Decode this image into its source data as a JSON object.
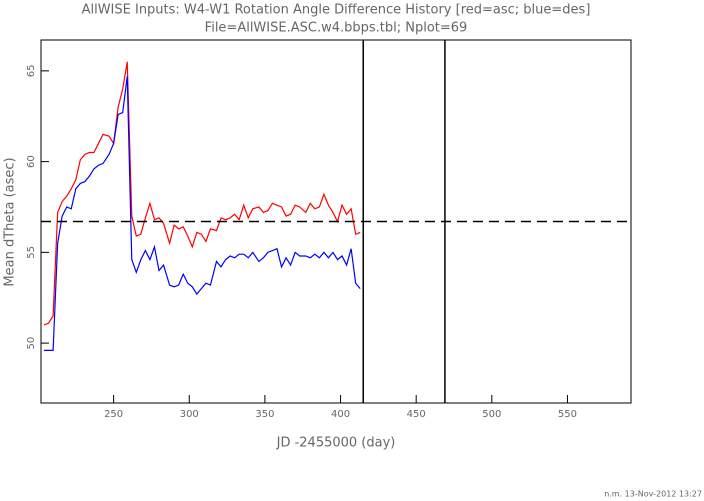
{
  "chart_data": {
    "type": "line",
    "title": "AllWISE Inputs: W4-W1 Rotation Angle Difference History [red=asc; blue=des]",
    "subtitle": "File=AllWISE.ASC.w4.bbps.tbl; Nplot=69",
    "x_label": "JD -2455000 (day)",
    "y_label": "Mean dTheta (asec)",
    "footer": "n.m. 13-Nov-2012 13:27",
    "x": [
      204,
      207,
      210,
      213,
      216,
      219,
      222,
      225,
      228,
      231,
      234,
      237,
      240,
      243,
      247,
      250,
      253,
      256,
      259,
      262,
      265,
      268,
      271,
      274,
      277,
      280,
      283,
      287,
      290,
      293,
      296,
      299,
      302,
      305,
      308,
      311,
      314,
      318,
      321,
      324,
      327,
      330,
      333,
      336,
      339,
      342,
      346,
      349,
      352,
      355,
      358,
      361,
      364,
      367,
      370,
      373,
      377,
      380,
      383,
      386,
      389,
      392,
      395,
      398,
      401,
      404,
      407,
      410,
      413
    ],
    "series": [
      {
        "name": "asc",
        "color": "#ff0000",
        "values": [
          51.0,
          51.1,
          51.5,
          57.2,
          57.8,
          58.1,
          58.5,
          59.0,
          60.1,
          60.4,
          60.5,
          60.5,
          61.0,
          61.5,
          61.4,
          61.0,
          63.0,
          64.0,
          65.5,
          57.0,
          55.9,
          56.0,
          56.9,
          57.7,
          56.8,
          56.9,
          56.6,
          55.5,
          56.5,
          56.3,
          56.4,
          55.9,
          55.3,
          56.1,
          56.0,
          55.6,
          56.3,
          56.2,
          56.9,
          56.8,
          56.9,
          57.1,
          56.8,
          57.6,
          56.9,
          57.4,
          57.5,
          57.2,
          57.3,
          57.7,
          57.6,
          57.5,
          57.0,
          57.1,
          57.6,
          57.5,
          57.2,
          57.7,
          57.4,
          57.5,
          58.2,
          57.6,
          57.2,
          56.7,
          57.6,
          57.1,
          57.4,
          56.0,
          56.1
        ]
      },
      {
        "name": "des",
        "color": "#0000ff",
        "values": [
          49.6,
          49.6,
          49.6,
          55.5,
          57.0,
          57.5,
          57.4,
          58.5,
          58.8,
          58.9,
          59.2,
          59.6,
          59.8,
          59.9,
          60.4,
          61.0,
          62.6,
          62.7,
          64.7,
          54.6,
          53.9,
          54.6,
          55.1,
          54.6,
          55.3,
          54.0,
          54.3,
          53.2,
          53.1,
          53.2,
          53.8,
          53.3,
          53.1,
          52.7,
          53.0,
          53.3,
          53.2,
          54.5,
          54.2,
          54.6,
          54.8,
          54.7,
          54.9,
          54.9,
          54.7,
          55.0,
          54.5,
          54.7,
          55.0,
          55.1,
          55.2,
          54.2,
          54.7,
          54.3,
          55.0,
          54.8,
          54.8,
          54.7,
          54.9,
          54.7,
          55.0,
          54.7,
          55.0,
          54.6,
          54.8,
          54.3,
          55.2,
          53.3,
          53.0
        ]
      }
    ],
    "hlines": [
      56.7
    ],
    "vlines": [
      415,
      469
    ],
    "xlim": [
      202,
      592
    ],
    "ylim": [
      46.7,
      66.7
    ],
    "xticks": [
      250,
      300,
      350,
      400,
      450,
      500,
      550
    ],
    "yticks": [
      50,
      55,
      60,
      65
    ]
  }
}
